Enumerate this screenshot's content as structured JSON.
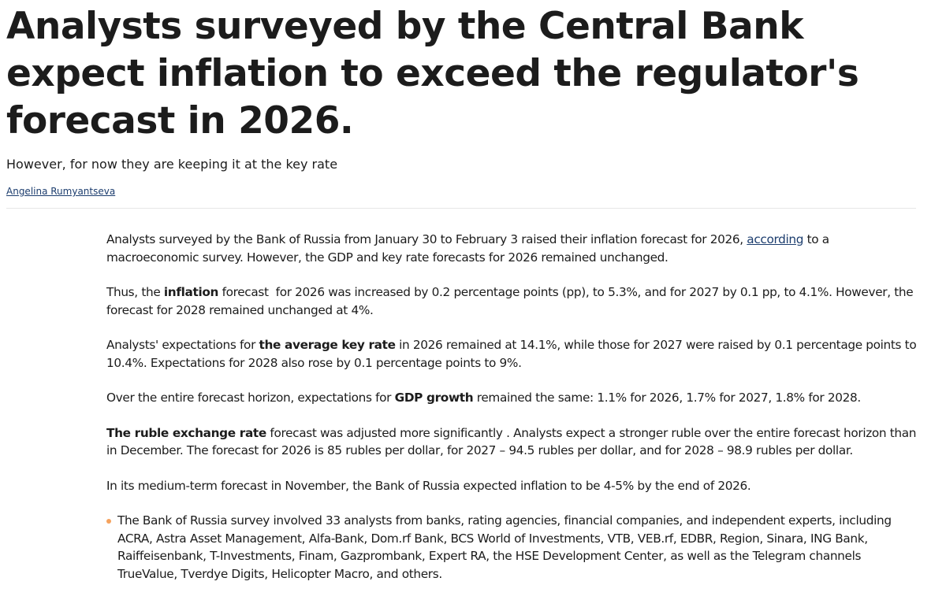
{
  "headline": "Analysts surveyed by the Central Bank expect inflation to exceed the regulator's forecast in 2026.",
  "subtitle": "However, for now they are keeping it at the key rate",
  "author": "Angelina Rumyantseva",
  "article": {
    "p1": {
      "before": "Analysts surveyed by the Bank of Russia from January 30 to February 3 raised their inflation forecast for 2026, ",
      "link": "according",
      "after": " to a macroeconomic survey. However, the GDP and key rate forecasts for 2026 remained unchanged."
    },
    "p2": {
      "before": "Thus, the ",
      "bold": "inflation",
      "after": " forecast  for 2026 was increased by 0.2 percentage points (pp), to 5.3%, and for 2027 by 0.1 pp, to 4.1%. However, the forecast for 2028 remained unchanged at 4%."
    },
    "p3": {
      "before": "Analysts' expectations for ",
      "bold": "the average key rate",
      "after": " in 2026 remained at 14.1%, while those for 2027 were raised by 0.1 percentage points to 10.4%. Expectations for 2028 also rose by 0.1 percentage points to 9%."
    },
    "p4": {
      "before": "Over the entire forecast horizon, expectations for ",
      "bold": "GDP growth",
      "after": " remained the same: 1.1% for 2026, 1.7% for 2027, 1.8% for 2028."
    },
    "p5": {
      "bold": "The ruble exchange rate",
      "after": " forecast was adjusted more significantly . Analysts expect a stronger ruble over the entire forecast horizon than in December. The forecast for 2026 is 85 rubles per dollar, for 2027 – 94.5 rubles per dollar, and for 2028 – 98.9 rubles per dollar."
    },
    "p6": "In its medium-term forecast in November, the Bank of Russia expected inflation to be 4-5% by the end of 2026.",
    "note": "The Bank of Russia survey involved 33 analysts from banks, rating agencies, financial companies, and independent experts, including ACRA, Astra Asset Management, Alfa-Bank, Dom.rf Bank, BCS World of Investments, VTB, VEB.rf, EDBR, Region, Sinara, ING Bank, Raiffeisenbank, T-Investments, Finam, Gazprombank, Expert RA, the HSE Development Center, as well as the Telegram channels TrueValue, Tverdye Digits, Helicopter Macro, and others."
  },
  "colors": {
    "text": "#1c1c1c",
    "link": "#1c3d6e",
    "bullet": "#f5a25d",
    "divider": "#e6e6e6"
  }
}
